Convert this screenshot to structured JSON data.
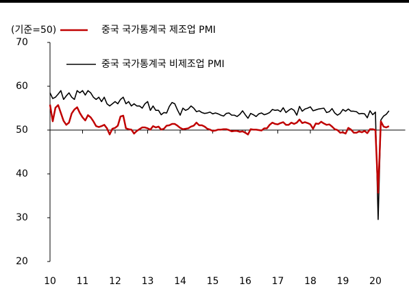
{
  "chart_data": {
    "type": "line",
    "unit_label": "(기준=50)",
    "x": [
      0,
      1,
      2,
      3,
      4,
      5,
      6,
      7,
      8,
      9,
      10,
      11,
      12,
      13,
      14,
      15,
      16,
      17,
      18,
      19,
      20,
      21,
      22,
      23,
      24,
      25,
      26,
      27,
      28,
      29,
      30,
      31,
      32,
      33,
      34,
      35,
      36,
      37,
      38,
      39,
      40,
      41,
      42,
      43,
      44,
      45,
      46,
      47,
      48,
      49,
      50,
      51,
      52,
      53,
      54,
      55,
      56,
      57,
      58,
      59,
      60,
      61,
      62,
      63,
      64,
      65,
      66,
      67,
      68,
      69,
      70,
      71,
      72,
      73,
      74,
      75,
      76,
      77,
      78,
      79,
      80,
      81,
      82,
      83,
      84,
      85,
      86,
      87,
      88,
      89,
      90,
      91,
      92,
      93,
      94,
      95,
      96,
      97,
      98,
      99,
      100,
      101,
      102,
      103,
      104,
      105,
      106,
      107,
      108,
      109,
      110,
      111,
      112,
      113,
      114,
      115,
      116,
      117,
      118,
      119,
      120,
      121,
      122,
      123,
      124,
      125
    ],
    "xlim": [
      0,
      131
    ],
    "xticks": [
      {
        "value": 0,
        "label": "10"
      },
      {
        "value": 12,
        "label": "11"
      },
      {
        "value": 24,
        "label": "12"
      },
      {
        "value": 36,
        "label": "13"
      },
      {
        "value": 48,
        "label": "14"
      },
      {
        "value": 60,
        "label": "15"
      },
      {
        "value": 72,
        "label": "16"
      },
      {
        "value": 84,
        "label": "17"
      },
      {
        "value": 96,
        "label": "18"
      },
      {
        "value": 108,
        "label": "19"
      },
      {
        "value": 120,
        "label": "20"
      }
    ],
    "ylim": [
      20,
      70
    ],
    "yticks": [
      20,
      30,
      40,
      50,
      60,
      70
    ],
    "series": [
      {
        "name": "중국 국가통계국 제조업 PMI",
        "color": "#c00000",
        "values": [
          55.8,
          52.0,
          55.1,
          55.7,
          53.9,
          52.1,
          51.2,
          51.7,
          53.8,
          54.7,
          55.2,
          53.9,
          52.9,
          52.2,
          53.4,
          52.9,
          52.0,
          50.9,
          50.7,
          50.9,
          51.2,
          50.4,
          49.0,
          50.3,
          50.5,
          51.0,
          53.1,
          53.3,
          50.4,
          50.2,
          50.1,
          49.2,
          49.8,
          50.2,
          50.6,
          50.6,
          50.4,
          50.1,
          50.9,
          50.6,
          50.8,
          50.1,
          50.3,
          51.0,
          51.1,
          51.4,
          51.4,
          51.0,
          50.5,
          50.2,
          50.3,
          50.4,
          50.8,
          51.0,
          51.7,
          51.1,
          51.1,
          50.8,
          50.3,
          50.1,
          49.8,
          49.9,
          50.1,
          50.1,
          50.2,
          50.2,
          50.0,
          49.7,
          49.8,
          49.8,
          49.6,
          49.7,
          49.4,
          49.0,
          50.2,
          50.1,
          50.1,
          50.0,
          49.9,
          50.4,
          50.4,
          51.2,
          51.7,
          51.4,
          51.3,
          51.6,
          51.8,
          51.2,
          51.2,
          51.7,
          51.4,
          51.7,
          52.4,
          51.6,
          51.8,
          51.6,
          51.3,
          50.3,
          51.5,
          51.4,
          51.9,
          51.5,
          51.2,
          51.3,
          50.8,
          50.2,
          50.0,
          49.4,
          49.5,
          49.2,
          50.5,
          50.1,
          49.4,
          49.4,
          49.7,
          49.5,
          49.8,
          49.3,
          50.2,
          50.2,
          50.0,
          35.7,
          52.0,
          50.8,
          50.6,
          50.9
        ]
      },
      {
        "name": "중국 국가통계국 비제조업 PMI",
        "color": "#000000",
        "values": [
          58.5,
          57.2,
          57.5,
          58.2,
          59.0,
          57.0,
          57.8,
          58.5,
          57.5,
          57.0,
          59.0,
          58.5,
          59.0,
          58.0,
          59.0,
          58.5,
          57.5,
          57.0,
          57.5,
          56.5,
          57.5,
          56.0,
          55.5,
          56.0,
          56.5,
          56.0,
          57.0,
          57.5,
          56.0,
          56.5,
          55.5,
          56.0,
          55.5,
          55.5,
          55.0,
          56.0,
          56.5,
          54.5,
          55.5,
          54.5,
          54.5,
          53.5,
          54.0,
          53.9,
          55.4,
          56.3,
          56.0,
          54.6,
          53.4,
          55.0,
          54.5,
          54.8,
          55.5,
          55.0,
          54.2,
          54.4,
          54.0,
          53.8,
          53.9,
          54.1,
          53.7,
          53.9,
          53.7,
          53.4,
          53.2,
          53.8,
          53.9,
          53.4,
          53.4,
          53.1,
          53.6,
          54.4,
          53.5,
          52.7,
          53.8,
          53.5,
          53.1,
          53.7,
          53.9,
          53.5,
          53.7,
          54.0,
          54.7,
          54.5,
          54.6,
          54.2,
          55.1,
          54.0,
          54.5,
          54.9,
          54.5,
          53.4,
          55.4,
          54.3,
          54.8,
          55.0,
          55.3,
          54.4,
          54.6,
          54.8,
          54.9,
          55.0,
          54.0,
          54.2,
          54.9,
          53.9,
          53.4,
          53.8,
          54.7,
          54.3,
          54.8,
          54.3,
          54.3,
          54.2,
          53.7,
          53.8,
          53.7,
          52.8,
          54.4,
          53.5,
          54.1,
          29.6,
          52.3,
          53.2,
          53.6,
          54.4
        ]
      }
    ]
  }
}
